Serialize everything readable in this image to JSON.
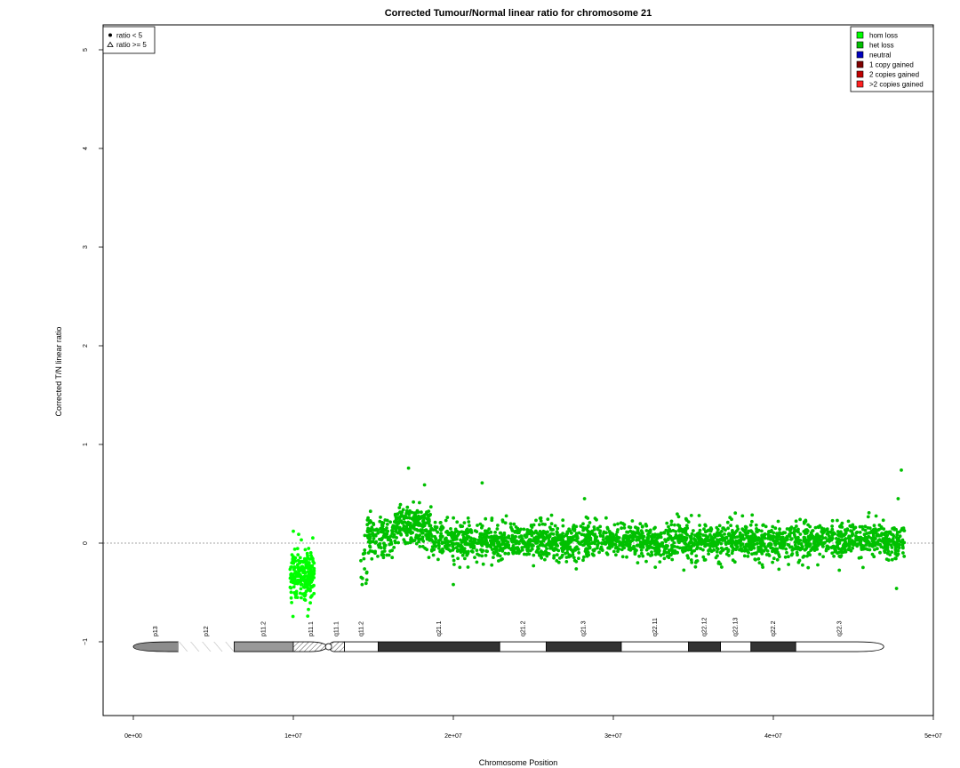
{
  "chart_data": {
    "type": "scatter",
    "title": "Corrected Tumour/Normal linear ratio for chromosome  21",
    "xlabel": "Chromosome Position",
    "ylabel": "Corrected T/N linear ratio",
    "xlim": [
      0,
      50000000
    ],
    "ylim": [
      -1.75,
      5.3
    ],
    "x_ticks": [
      {
        "value": 0,
        "label": "0e+00"
      },
      {
        "value": 10000000,
        "label": "1e+07"
      },
      {
        "value": 20000000,
        "label": "2e+07"
      },
      {
        "value": 30000000,
        "label": "3e+07"
      },
      {
        "value": 40000000,
        "label": "4e+07"
      },
      {
        "value": 50000000,
        "label": "5e+07"
      }
    ],
    "y_ticks": [
      {
        "value": -1,
        "label": "−1"
      },
      {
        "value": 0,
        "label": "0"
      },
      {
        "value": 1,
        "label": "1"
      },
      {
        "value": 2,
        "label": "2"
      },
      {
        "value": 3,
        "label": "3"
      },
      {
        "value": 4,
        "label": "4"
      },
      {
        "value": 5,
        "label": "5"
      }
    ],
    "reference_line_y": 0,
    "shape_legend": [
      {
        "symbol": "circle",
        "label": "ratio < 5"
      },
      {
        "symbol": "triangle",
        "label": "ratio >= 5"
      }
    ],
    "state_legend": [
      {
        "label": "hom loss",
        "color": "#00ff00"
      },
      {
        "label": "het loss",
        "color": "#00c000"
      },
      {
        "label": "neutral",
        "color": "#0000c0"
      },
      {
        "label": "1 copy gained",
        "color": "#800000"
      },
      {
        "label": "2 copies gained",
        "color": "#c00000"
      },
      {
        "label": ">2 copies gained",
        "color": "#ff2020"
      }
    ],
    "segments": [
      {
        "start": 9800000,
        "end": 11300000,
        "state": "hom loss",
        "color": "#00ff00",
        "mean": -0.33,
        "sd": 0.13,
        "count": 220
      },
      {
        "start": 14200000,
        "end": 14600000,
        "state": "het loss",
        "color": "#00c000",
        "mean": -0.22,
        "sd": 0.1,
        "count": 14
      },
      {
        "start": 14600000,
        "end": 16300000,
        "state": "het loss",
        "color": "#00c000",
        "mean": 0.07,
        "sd": 0.09,
        "count": 130
      },
      {
        "start": 16300000,
        "end": 18600000,
        "state": "het loss",
        "color": "#00c000",
        "mean": 0.18,
        "sd": 0.1,
        "count": 230
      },
      {
        "start": 18600000,
        "end": 48200000,
        "state": "het loss",
        "color": "#00c000",
        "mean": 0.02,
        "sd": 0.09,
        "count": 2300
      }
    ],
    "outliers": [
      {
        "x": 17200000,
        "y": 0.76
      },
      {
        "x": 21800000,
        "y": 0.61
      },
      {
        "x": 18200000,
        "y": 0.59
      },
      {
        "x": 28200000,
        "y": 0.45
      },
      {
        "x": 48000000,
        "y": 0.74
      },
      {
        "x": 47800000,
        "y": 0.45
      },
      {
        "x": 47700000,
        "y": -0.46
      },
      {
        "x": 20000000,
        "y": -0.42
      },
      {
        "x": 10000000,
        "y": 0.12
      },
      {
        "x": 10900000,
        "y": -0.74
      },
      {
        "x": 14300000,
        "y": -0.42
      }
    ],
    "ideogram": {
      "y": -1.05,
      "bands": [
        {
          "name": "p13",
          "start": 0,
          "end": 2800000,
          "fill": "#8c8c8c",
          "pattern": "solid"
        },
        {
          "name": "p12",
          "start": 2800000,
          "end": 6300000,
          "fill": "#ffffff",
          "pattern": "stalk"
        },
        {
          "name": "p11.2",
          "start": 6300000,
          "end": 10000000,
          "fill": "#999999",
          "pattern": "solid"
        },
        {
          "name": "p11.1",
          "start": 10000000,
          "end": 12200000,
          "fill": "#ffffff",
          "pattern": "hatch"
        },
        {
          "name": "q11.1",
          "start": 12200000,
          "end": 13200000,
          "fill": "#ffffff",
          "pattern": "hatch"
        },
        {
          "name": "q11.2",
          "start": 13200000,
          "end": 15300000,
          "fill": "#ffffff",
          "pattern": "solid"
        },
        {
          "name": "q21.1",
          "start": 15300000,
          "end": 22900000,
          "fill": "#333333",
          "pattern": "solid"
        },
        {
          "name": "q21.2",
          "start": 22900000,
          "end": 25800000,
          "fill": "#ffffff",
          "pattern": "solid"
        },
        {
          "name": "q21.3",
          "start": 25800000,
          "end": 30500000,
          "fill": "#333333",
          "pattern": "solid"
        },
        {
          "name": "q22.11",
          "start": 30500000,
          "end": 34700000,
          "fill": "#ffffff",
          "pattern": "solid"
        },
        {
          "name": "q22.12",
          "start": 34700000,
          "end": 36700000,
          "fill": "#333333",
          "pattern": "solid"
        },
        {
          "name": "q22.13",
          "start": 36700000,
          "end": 38600000,
          "fill": "#ffffff",
          "pattern": "solid"
        },
        {
          "name": "q22.2",
          "start": 38600000,
          "end": 41400000,
          "fill": "#333333",
          "pattern": "solid"
        },
        {
          "name": "q22.3",
          "start": 41400000,
          "end": 46900000,
          "fill": "#ffffff",
          "pattern": "solid"
        }
      ],
      "centromere": 12200000
    }
  }
}
